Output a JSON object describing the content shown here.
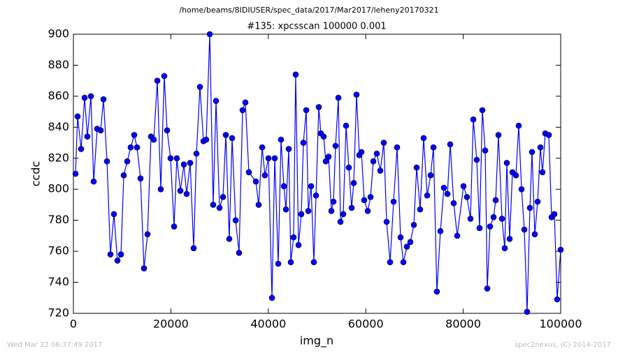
{
  "chart_data": {
    "type": "line",
    "suptitle": "/home/beams/8IDIUSER/spec_data/2017/Mar2017/leheny20170321",
    "title": "#135: xpcsscan 100000 0.001",
    "xlabel": "img_n",
    "ylabel": "ccdc",
    "footer_left": "Wed Mar 22 06:37:49 2017",
    "footer_right": "spec2nexus, (C) 2014-2017",
    "xlim": [
      0,
      100000
    ],
    "xticks": [
      0,
      20000,
      40000,
      60000,
      80000,
      100000
    ],
    "ylim": [
      720,
      900
    ],
    "yticks": [
      720,
      740,
      760,
      780,
      800,
      820,
      840,
      860,
      880,
      900
    ],
    "grid": false,
    "x": [
      430,
      860,
      1580,
      2300,
      2870,
      3590,
      4160,
      4880,
      5600,
      6170,
      6890,
      7600,
      8320,
      9040,
      9760,
      10330,
      11050,
      11760,
      12480,
      13060,
      13770,
      14490,
      15210,
      15930,
      16500,
      17220,
      17930,
      18650,
      19230,
      19940,
      20660,
      21230,
      21950,
      22670,
      23240,
      23960,
      24680,
      25250,
      25970,
      26690,
      27260,
      27980,
      28690,
      29270,
      29990,
      30700,
      31280,
      31990,
      32570,
      33290,
      34000,
      34720,
      35290,
      36010,
      37450,
      38020,
      38740,
      39310,
      40030,
      40750,
      41320,
      42040,
      42610,
      43190,
      43620,
      44190,
      44620,
      45190,
      45620,
      46200,
      46770,
      47200,
      47780,
      48210,
      48780,
      49350,
      49790,
      50360,
      50790,
      51360,
      51790,
      52370,
      52940,
      53370,
      53800,
      54380,
      54810,
      55380,
      55950,
      56530,
      57100,
      57530,
      58110,
      58680,
      59110,
      59680,
      60400,
      60980,
      61550,
      62270,
      62980,
      63700,
      64280,
      64990,
      65710,
      66430,
      67140,
      67720,
      68440,
      69150,
      69870,
      70440,
      71160,
      71880,
      72600,
      73310,
      73890,
      74600,
      75320,
      76040,
      76760,
      77330,
      78050,
      78770,
      80060,
      80770,
      81490,
      82070,
      82780,
      83360,
      83930,
      84510,
      84940,
      85510,
      86230,
      86660,
      87230,
      87950,
      88520,
      88950,
      89530,
      90100,
      90820,
      91390,
      91970,
      92540,
      93110,
      93690,
      94120,
      94690,
      95270,
      95840,
      96270,
      96840,
      97560,
      98140,
      98710,
      99280,
      100000
    ],
    "series": [
      {
        "name": "ccdc",
        "color": "#0000ff",
        "values": [
          810,
          847,
          826,
          859,
          834,
          860,
          805,
          839,
          838,
          858,
          818,
          758,
          784,
          754,
          758,
          809,
          818,
          827,
          835,
          827,
          807,
          749,
          771,
          834,
          832,
          870,
          800,
          873,
          838,
          820,
          776,
          820,
          799,
          816,
          797,
          817,
          762,
          823,
          866,
          831,
          832,
          900,
          790,
          857,
          788,
          795,
          835,
          768,
          833,
          780,
          759,
          851,
          856,
          811,
          805,
          790,
          827,
          809,
          820,
          730,
          820,
          752,
          832,
          802,
          787,
          826,
          753,
          769,
          874,
          764,
          784,
          830,
          851,
          786,
          802,
          753,
          796,
          853,
          836,
          834,
          818,
          821,
          786,
          792,
          828,
          859,
          779,
          784,
          841,
          814,
          788,
          804,
          861,
          822,
          824,
          793,
          786,
          795,
          818,
          823,
          812,
          830,
          779,
          753,
          792,
          827,
          769,
          753,
          763,
          766,
          777,
          814,
          787,
          833,
          796,
          809,
          827,
          734,
          773,
          801,
          797,
          829,
          791,
          770,
          802,
          795,
          781,
          845,
          819,
          775,
          851,
          825,
          736,
          776,
          782,
          793,
          835,
          781,
          762,
          817,
          768,
          811,
          809,
          841,
          800,
          774,
          721,
          788,
          824,
          771,
          792,
          827,
          811,
          836,
          835,
          782,
          784,
          729,
          761
        ]
      }
    ]
  }
}
